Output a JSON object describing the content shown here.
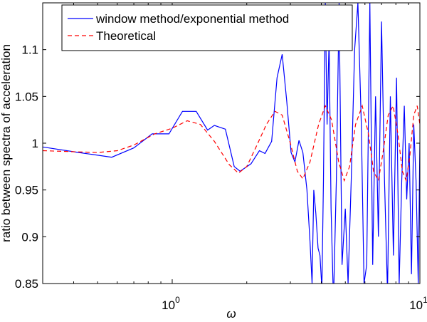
{
  "chart_data": {
    "type": "line",
    "xscale": "log",
    "xlim": [
      0.3,
      10
    ],
    "ylim": [
      0.85,
      1.15
    ],
    "xlabel": "ω",
    "ylabel": "ratio between spectra of acceleration",
    "legend_position": "top-left",
    "grid": false,
    "x_ticks": [
      {
        "value": 1,
        "label": "10",
        "sup": "0"
      },
      {
        "value": 10,
        "label": "10",
        "sup": "1"
      }
    ],
    "y_ticks": [
      {
        "value": 0.85,
        "label": "0.85"
      },
      {
        "value": 0.9,
        "label": "0.9"
      },
      {
        "value": 0.95,
        "label": "0.95"
      },
      {
        "value": 1.0,
        "label": "1"
      },
      {
        "value": 1.05,
        "label": "1.05"
      },
      {
        "value": 1.1,
        "label": "1.1"
      }
    ],
    "series": [
      {
        "name": "window method/exponential method",
        "style": "solid",
        "color": "#0000ff",
        "points": [
          [
            0.3,
            0.996
          ],
          [
            0.42,
            0.99
          ],
          [
            0.57,
            0.985
          ],
          [
            0.7,
            0.995
          ],
          [
            0.83,
            1.01
          ],
          [
            0.97,
            1.01
          ],
          [
            1.1,
            1.034
          ],
          [
            1.25,
            1.034
          ],
          [
            1.39,
            1.014
          ],
          [
            1.48,
            1.019
          ],
          [
            1.64,
            1.015
          ],
          [
            1.78,
            0.975
          ],
          [
            1.88,
            0.97
          ],
          [
            2.08,
            0.978
          ],
          [
            2.25,
            0.992
          ],
          [
            2.37,
            0.989
          ],
          [
            2.52,
            1.002
          ],
          [
            2.65,
            1.07
          ],
          [
            2.78,
            1.095
          ],
          [
            2.9,
            1.045
          ],
          [
            3.02,
            0.99
          ],
          [
            3.13,
            0.98
          ],
          [
            3.25,
            1.003
          ],
          [
            3.37,
            0.99
          ],
          [
            3.5,
            0.95
          ],
          [
            3.6,
            0.895
          ],
          [
            3.67,
            0.85
          ],
          [
            3.73,
            0.95
          ],
          [
            3.8,
            0.925
          ],
          [
            3.88,
            0.888
          ],
          [
            3.95,
            0.88
          ],
          [
            4.02,
            0.845
          ],
          [
            4.08,
            0.96
          ],
          [
            4.15,
            1.15
          ],
          [
            4.22,
            1.02
          ],
          [
            4.3,
            1.11
          ],
          [
            4.38,
            0.93
          ],
          [
            4.48,
            0.83
          ],
          [
            4.6,
            0.96
          ],
          [
            4.72,
            1.15
          ],
          [
            4.85,
            0.87
          ],
          [
            5.0,
            0.93
          ],
          [
            5.13,
            0.85
          ],
          [
            5.28,
            0.96
          ],
          [
            5.45,
            1.1
          ],
          [
            5.62,
            1.15
          ],
          [
            5.8,
            1.02
          ],
          [
            5.95,
            0.85
          ],
          [
            6.1,
            0.87
          ],
          [
            6.28,
            1.15
          ],
          [
            6.45,
            0.87
          ],
          [
            6.62,
            1.05
          ],
          [
            6.8,
            0.9
          ],
          [
            7.0,
            1.13
          ],
          [
            7.2,
            0.96
          ],
          [
            7.4,
            0.84
          ],
          [
            7.6,
            1.05
          ],
          [
            7.82,
            0.88
          ],
          [
            8.05,
            1.07
          ],
          [
            8.25,
            0.85
          ],
          [
            8.45,
            0.96
          ],
          [
            8.65,
            1.04
          ],
          [
            8.85,
            0.94
          ],
          [
            9.05,
            1.0
          ],
          [
            9.25,
            0.86
          ],
          [
            9.45,
            1.02
          ],
          [
            9.65,
            0.96
          ],
          [
            9.85,
            0.85
          ],
          [
            10.0,
            1.0
          ]
        ]
      },
      {
        "name": "Theoretical",
        "style": "dashed",
        "color": "#ff0000",
        "function": "damped-cosine",
        "points": [
          [
            0.3,
            0.992
          ],
          [
            0.5,
            0.99
          ],
          [
            0.6,
            0.992
          ],
          [
            0.7,
            0.998
          ],
          [
            0.85,
            1.01
          ],
          [
            1.0,
            1.016
          ],
          [
            1.15,
            1.024
          ],
          [
            1.3,
            1.02
          ],
          [
            1.48,
            1.002
          ],
          [
            1.7,
            0.977
          ],
          [
            1.85,
            0.968
          ],
          [
            2.0,
            0.975
          ],
          [
            2.2,
            0.998
          ],
          [
            2.4,
            1.02
          ],
          [
            2.6,
            1.034
          ],
          [
            2.78,
            1.03
          ],
          [
            3.0,
            1.0
          ],
          [
            3.2,
            0.97
          ],
          [
            3.37,
            0.962
          ],
          [
            3.6,
            0.98
          ],
          [
            3.9,
            1.02
          ],
          [
            4.15,
            1.04
          ],
          [
            4.4,
            1.025
          ],
          [
            4.7,
            0.98
          ],
          [
            4.95,
            0.96
          ],
          [
            5.2,
            0.975
          ],
          [
            5.5,
            1.02
          ],
          [
            5.85,
            1.04
          ],
          [
            6.2,
            1.01
          ],
          [
            6.5,
            0.97
          ],
          [
            6.8,
            0.96
          ],
          [
            7.1,
            0.99
          ],
          [
            7.45,
            1.03
          ],
          [
            7.8,
            1.04
          ],
          [
            8.15,
            1.01
          ],
          [
            8.5,
            0.97
          ],
          [
            8.8,
            0.96
          ],
          [
            9.1,
            0.985
          ],
          [
            9.45,
            1.03
          ],
          [
            9.75,
            1.04
          ],
          [
            10.0,
            1.02
          ]
        ]
      }
    ]
  }
}
